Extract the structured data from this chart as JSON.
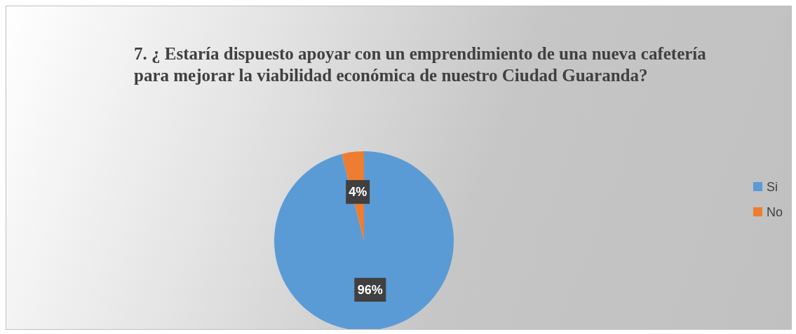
{
  "chart_data": {
    "type": "pie",
    "title": "7. ¿ Estaría dispuesto apoyar con un emprendimiento de una nueva cafetería para mejorar la viabilidad económica de nuestro Ciudad Guaranda?",
    "categories": [
      "Si",
      "No"
    ],
    "values": [
      96,
      4
    ],
    "colors": [
      "#5b9bd5",
      "#ed7d31"
    ],
    "value_labels": [
      "96%",
      "4%"
    ],
    "legend": "right"
  }
}
